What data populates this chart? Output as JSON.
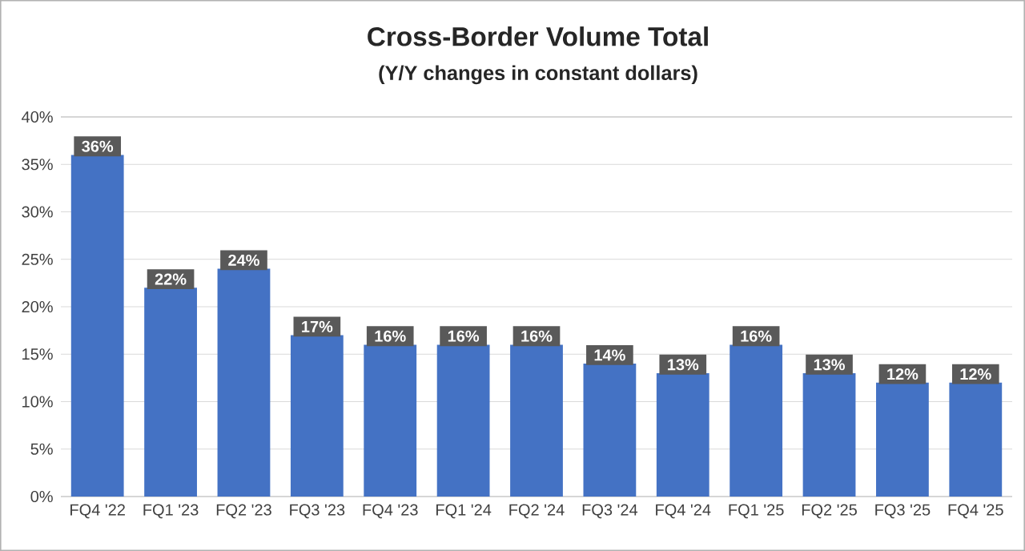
{
  "chart_data": {
    "type": "bar",
    "title": "Cross-Border Volume Total",
    "subtitle": "(Y/Y changes in constant dollars)",
    "categories": [
      "FQ4 '22",
      "FQ1 '23",
      "FQ2 '23",
      "FQ3 '23",
      "FQ4 '23",
      "FQ1 '24",
      "FQ2 '24",
      "FQ3 '24",
      "FQ4 '24",
      "FQ1 '25",
      "FQ2 '25",
      "FQ3 '25",
      "FQ4 '25"
    ],
    "values": [
      36,
      22,
      24,
      17,
      16,
      16,
      16,
      14,
      13,
      16,
      13,
      12,
      12
    ],
    "value_labels": [
      "36%",
      "22%",
      "24%",
      "17%",
      "16%",
      "16%",
      "16%",
      "14%",
      "13%",
      "16%",
      "13%",
      "12%",
      "12%"
    ],
    "color": "#4472c4",
    "ylim": [
      0,
      40
    ],
    "yticks": [
      {
        "value": 0,
        "label": "0%"
      },
      {
        "value": 5,
        "label": "5%"
      },
      {
        "value": 10,
        "label": "10%"
      },
      {
        "value": 15,
        "label": "15%"
      },
      {
        "value": 20,
        "label": "20%"
      },
      {
        "value": 25,
        "label": "25%"
      },
      {
        "value": 30,
        "label": "30%"
      },
      {
        "value": 35,
        "label": "35%"
      },
      {
        "value": 40,
        "label": "40%"
      }
    ],
    "grid": "y"
  }
}
